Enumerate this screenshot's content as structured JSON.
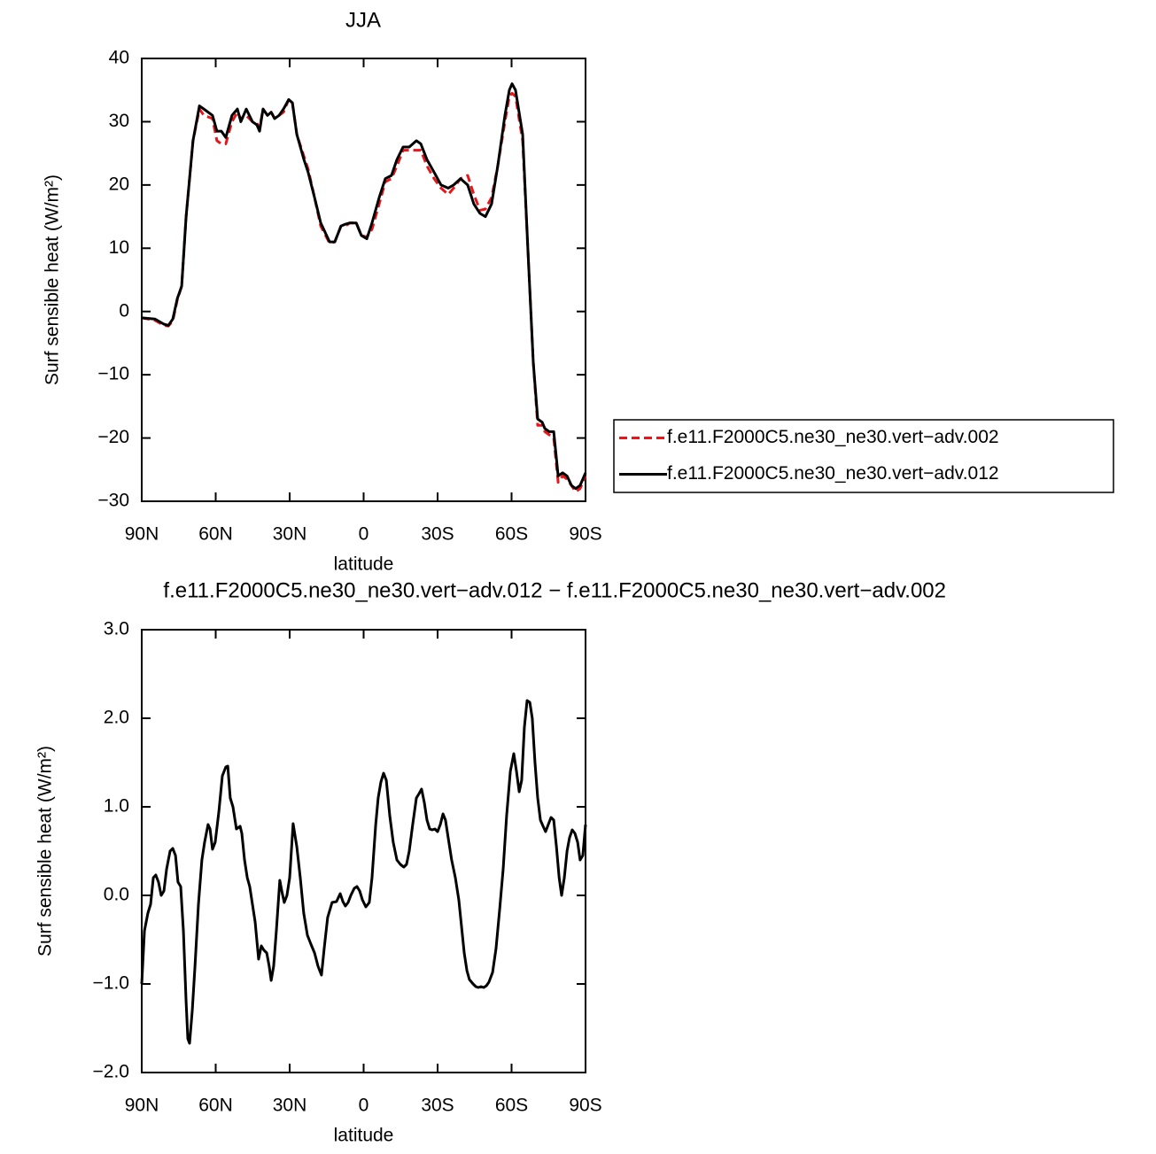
{
  "chart_data": [
    {
      "type": "line",
      "title": "JJA",
      "xlabel": "latitude",
      "ylabel": "Surf sensible heat (W/m²)",
      "xlim": [
        90,
        -90
      ],
      "ylim": [
        -30,
        40
      ],
      "xticks": [
        {
          "value": 90,
          "label": "90N"
        },
        {
          "value": 60,
          "label": "60N"
        },
        {
          "value": 30,
          "label": "30N"
        },
        0,
        {
          "value": -30,
          "label": "30S"
        },
        {
          "value": -60,
          "label": "60S"
        },
        {
          "value": -90,
          "label": "90S"
        }
      ],
      "yticks": [
        {
          "value": -30,
          "label": "−30"
        },
        {
          "value": -20,
          "label": "−20"
        },
        {
          "value": -10,
          "label": "−10"
        },
        0,
        10,
        20,
        30,
        40
      ],
      "legend": "right",
      "x": [
        90.0,
        84.6,
        81.0,
        79.2,
        77.4,
        75.6,
        73.8,
        72.0,
        69.2,
        66.6,
        64.8,
        61.3,
        59.5,
        57.7,
        55.9,
        53.4,
        51.2,
        49.8,
        47.6,
        45.1,
        43.3,
        42.2,
        40.8,
        39.0,
        37.5,
        36.1,
        34.3,
        32.5,
        30.4,
        28.9,
        27.1,
        24.2,
        22.5,
        19.9,
        17.4,
        13.8,
        11.7,
        9.2,
        7.4,
        5.6,
        3.0,
        0.9,
        -1.3,
        -3.4,
        -6.3,
        -8.8,
        -11.3,
        -13.5,
        -16.0,
        -18.5,
        -21.4,
        -23.2,
        -25.7,
        -28.6,
        -31.4,
        -34.3,
        -36.5,
        -39.3,
        -42.2,
        -44.7,
        -47.2,
        -49.4,
        -51.9,
        -54.4,
        -57.3,
        -59.1,
        -60.2,
        -61.6,
        -64.5,
        -66.6,
        -68.8,
        -70.6,
        -72.4,
        -73.5,
        -75.3,
        -77.1,
        -78.9,
        -80.7,
        -82.5,
        -84.3,
        -86.0,
        -87.8,
        -90.0
      ],
      "series": [
        {
          "name": "f.e11.F2000C5.ne30_ne30.vert−adv.002",
          "color": "#e8161b",
          "line_style": "dashed",
          "values": [
            -1,
            -1.4,
            -2.2,
            -2.3,
            -1.5,
            1.8,
            4,
            15,
            27,
            32,
            31,
            30.5,
            27,
            26.5,
            26.5,
            30,
            31.5,
            30.5,
            31,
            30,
            29.8,
            29,
            32,
            31,
            31.5,
            30.5,
            31,
            31.5,
            33.5,
            33,
            28,
            24.5,
            22.5,
            18,
            13.5,
            10.8,
            11,
            13.5,
            13.5,
            14,
            14,
            12,
            11.8,
            13,
            17,
            20.5,
            21,
            23,
            25.5,
            25.5,
            25.5,
            25.5,
            23,
            21,
            19.5,
            18.5,
            19.5,
            21,
            21.5,
            18.5,
            16,
            16.2,
            18,
            23,
            30,
            34,
            34.5,
            34,
            27,
            10,
            -8,
            -18,
            -18,
            -19,
            -19.5,
            -20,
            -27,
            -26,
            -26.5,
            -27.5,
            -28.5,
            -28,
            -26
          ]
        },
        {
          "name": "f.e11.F2000C5.ne30_ne30.vert−adv.012",
          "color": "#000000",
          "line_style": "solid",
          "values": [
            -1,
            -1.2,
            -2,
            -2.2,
            -1.2,
            2,
            4,
            15,
            27,
            32.5,
            32,
            31,
            28.5,
            28.5,
            27.5,
            31,
            32,
            30,
            32,
            30,
            29.5,
            28.5,
            32,
            31,
            31.5,
            30.5,
            31,
            32,
            33.5,
            33,
            28,
            24,
            22,
            18,
            14,
            11,
            11,
            13.5,
            13.8,
            14,
            14,
            12,
            11.5,
            14,
            18,
            21,
            21.5,
            24,
            26,
            26,
            27,
            26.5,
            24,
            22,
            20,
            19.5,
            20,
            21,
            20,
            17,
            15.5,
            15,
            17,
            23,
            31,
            35,
            36,
            35,
            28,
            10,
            -8,
            -17,
            -17.5,
            -18.5,
            -19,
            -19,
            -26,
            -25.5,
            -26,
            -27.5,
            -28,
            -27.5,
            -25.5
          ]
        }
      ]
    },
    {
      "type": "line",
      "title": "f.e11.F2000C5.ne30_ne30.vert−adv.012 − f.e11.F2000C5.ne30_ne30.vert−adv.002",
      "xlabel": "latitude",
      "ylabel": "Surf sensible heat (W/m²)",
      "xlim": [
        90,
        -90
      ],
      "ylim": [
        -2,
        3
      ],
      "xticks": [
        {
          "value": 90,
          "label": "90N"
        },
        {
          "value": 60,
          "label": "60N"
        },
        {
          "value": 30,
          "label": "30N"
        },
        0,
        {
          "value": -30,
          "label": "30S"
        },
        {
          "value": -60,
          "label": "60S"
        },
        {
          "value": -90,
          "label": "90S"
        }
      ],
      "yticks": [
        {
          "value": -2,
          "label": "−2.0"
        },
        {
          "value": -1,
          "label": "−1.0"
        },
        {
          "value": 0,
          "label": "0.0"
        },
        {
          "value": 1,
          "label": "1.0"
        },
        {
          "value": 2,
          "label": "2.0"
        },
        {
          "value": 3,
          "label": "3.0"
        }
      ],
      "x": [
        90.0,
        88.9,
        87.5,
        86.4,
        85.3,
        84.3,
        83.2,
        82.1,
        81.0,
        79.9,
        78.5,
        77.4,
        76.3,
        75.3,
        74.2,
        73.1,
        72.0,
        71.3,
        70.6,
        69.5,
        68.4,
        67.0,
        65.6,
        64.5,
        63.1,
        62.3,
        61.3,
        60.2,
        58.7,
        57.3,
        55.9,
        55.1,
        54.1,
        53.0,
        51.6,
        50.1,
        49.4,
        48.3,
        47.2,
        46.2,
        45.1,
        44.0,
        42.6,
        41.5,
        40.4,
        39.3,
        38.3,
        37.5,
        36.5,
        35.4,
        34.0,
        33.2,
        32.2,
        31.1,
        30.0,
        28.6,
        27.1,
        25.7,
        24.3,
        22.8,
        21.4,
        19.9,
        18.5,
        17.1,
        16.0,
        14.6,
        12.8,
        11.0,
        9.5,
        8.4,
        7.4,
        6.3,
        5.2,
        3.8,
        2.7,
        1.6,
        0.5,
        -0.9,
        -2.3,
        -3.4,
        -4.9,
        -5.9,
        -7.0,
        -8.1,
        -9.2,
        -10.6,
        -12.0,
        -13.5,
        -14.9,
        -16.3,
        -17.4,
        -18.5,
        -19.9,
        -21.4,
        -22.5,
        -23.5,
        -24.6,
        -25.7,
        -26.8,
        -27.8,
        -28.9,
        -30.0,
        -31.1,
        -32.2,
        -33.2,
        -34.3,
        -35.7,
        -37.2,
        -38.6,
        -39.7,
        -40.8,
        -41.9,
        -42.9,
        -44.4,
        -45.5,
        -46.5,
        -47.6,
        -48.7,
        -49.8,
        -50.8,
        -52.3,
        -53.7,
        -55.2,
        -56.6,
        -58.0,
        -59.5,
        -60.9,
        -62.0,
        -63.1,
        -64.1,
        -65.2,
        -66.3,
        -67.4,
        -68.4,
        -69.5,
        -70.6,
        -71.7,
        -72.8,
        -73.8,
        -74.9,
        -76.0,
        -77.1,
        -78.2,
        -79.3,
        -80.3,
        -81.4,
        -82.5,
        -83.5,
        -84.6,
        -85.7,
        -86.8,
        -87.8,
        -88.9,
        -90.0
      ],
      "series": [
        {
          "color": "#000000",
          "line_style": "solid",
          "values": [
            -1.0,
            -0.4,
            -0.2,
            -0.1,
            0.2,
            0.23,
            0.15,
            0.0,
            0.05,
            0.3,
            0.5,
            0.53,
            0.45,
            0.15,
            0.1,
            -0.4,
            -1.2,
            -1.62,
            -1.67,
            -1.3,
            -0.8,
            -0.1,
            0.4,
            0.6,
            0.8,
            0.75,
            0.52,
            0.6,
            0.95,
            1.35,
            1.45,
            1.46,
            1.1,
            1.0,
            0.75,
            0.78,
            0.7,
            0.4,
            0.2,
            0.1,
            -0.1,
            -0.3,
            -0.72,
            -0.57,
            -0.62,
            -0.65,
            -0.8,
            -0.96,
            -0.8,
            -0.4,
            0.17,
            0.05,
            -0.08,
            0.0,
            0.2,
            0.81,
            0.55,
            0.2,
            -0.2,
            -0.45,
            -0.55,
            -0.65,
            -0.8,
            -0.9,
            -0.6,
            -0.25,
            -0.08,
            -0.07,
            0.02,
            -0.07,
            -0.12,
            -0.08,
            0.0,
            0.08,
            0.1,
            0.05,
            -0.05,
            -0.13,
            -0.08,
            0.2,
            0.8,
            1.1,
            1.28,
            1.38,
            1.3,
            0.9,
            0.6,
            0.4,
            0.35,
            0.32,
            0.35,
            0.5,
            0.8,
            1.1,
            1.15,
            1.2,
            1.05,
            0.85,
            0.75,
            0.74,
            0.75,
            0.72,
            0.8,
            0.92,
            0.85,
            0.65,
            0.4,
            0.2,
            -0.05,
            -0.35,
            -0.65,
            -0.85,
            -0.95,
            -1.0,
            -1.03,
            -1.04,
            -1.03,
            -1.04,
            -1.02,
            -0.98,
            -0.87,
            -0.6,
            -0.15,
            0.3,
            0.9,
            1.4,
            1.6,
            1.4,
            1.17,
            1.3,
            1.9,
            2.2,
            2.18,
            2.0,
            1.5,
            1.1,
            0.85,
            0.78,
            0.72,
            0.8,
            0.88,
            0.85,
            0.55,
            0.2,
            0.0,
            0.2,
            0.5,
            0.65,
            0.74,
            0.7,
            0.6,
            0.4,
            0.45,
            0.8
          ]
        }
      ]
    }
  ]
}
